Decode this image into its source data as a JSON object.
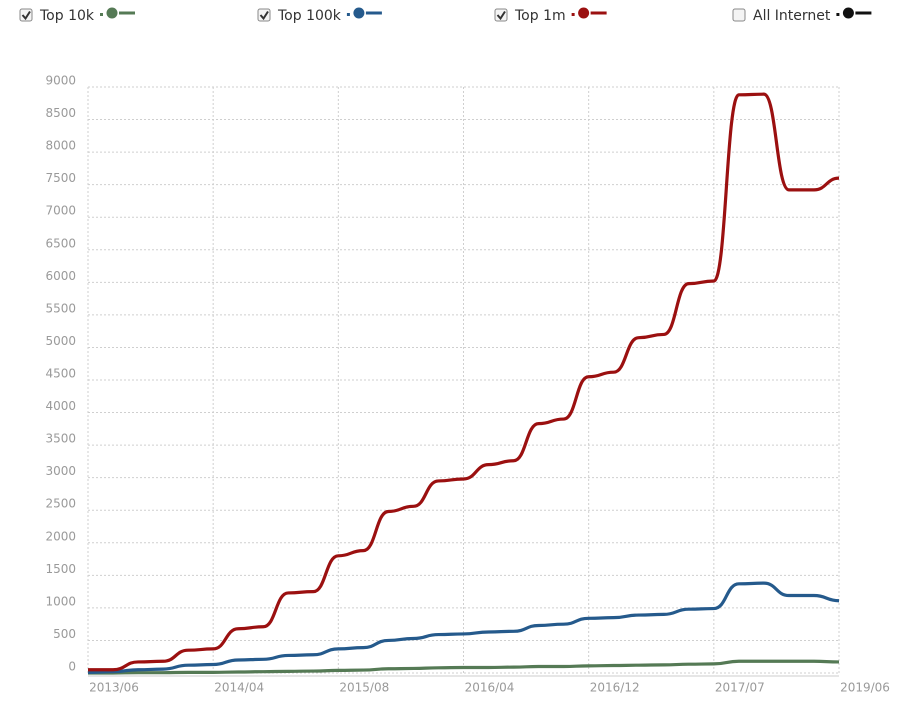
{
  "chart_data": {
    "type": "line",
    "categories": [
      "2013/06",
      null,
      null,
      null,
      null,
      "2014/04",
      null,
      null,
      null,
      null,
      "2015/08",
      null,
      null,
      null,
      null,
      "2016/04",
      null,
      null,
      null,
      null,
      "2016/12",
      null,
      null,
      null,
      null,
      "2017/07",
      null,
      null,
      null,
      null,
      "2019/06"
    ],
    "ylim": [
      0,
      9000
    ],
    "yticks": [
      0,
      500,
      1000,
      1500,
      2000,
      2500,
      3000,
      3500,
      4000,
      4500,
      5000,
      5500,
      6000,
      6500,
      7000,
      7500,
      8000,
      8500,
      9000
    ],
    "grid": true,
    "legend": "top",
    "series": [
      {
        "name": "Top 10k",
        "color": "#557a55",
        "checked": true,
        "values": [
          0,
          0,
          5,
          5,
          10,
          10,
          15,
          20,
          25,
          30,
          40,
          45,
          65,
          70,
          80,
          85,
          85,
          90,
          100,
          100,
          110,
          115,
          120,
          125,
          135,
          140,
          180,
          180,
          180,
          180,
          170
        ]
      },
      {
        "name": "Top 100k",
        "color": "#255a8c",
        "checked": true,
        "values": [
          10,
          20,
          50,
          60,
          120,
          130,
          200,
          210,
          270,
          280,
          370,
          390,
          500,
          530,
          590,
          600,
          630,
          640,
          730,
          750,
          840,
          850,
          890,
          900,
          980,
          990,
          1370,
          1380,
          1190,
          1190,
          1110
        ]
      },
      {
        "name": "Top 1m",
        "color": "#9b1010",
        "checked": true,
        "values": [
          50,
          50,
          170,
          180,
          350,
          370,
          680,
          710,
          1230,
          1250,
          1800,
          1880,
          2480,
          2560,
          2950,
          2980,
          3200,
          3260,
          3830,
          3900,
          4550,
          4620,
          5150,
          5200,
          5980,
          6020,
          8880,
          8890,
          7420,
          7420,
          7600
        ]
      },
      {
        "name": "All Internet",
        "color": "#111111",
        "checked": false
      }
    ]
  }
}
